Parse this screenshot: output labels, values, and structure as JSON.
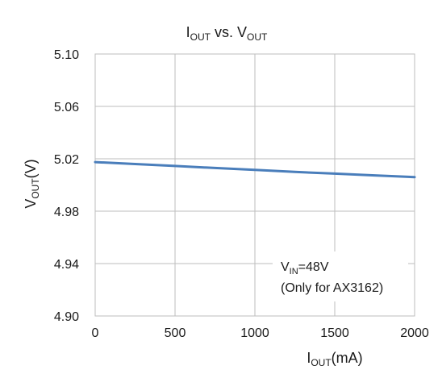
{
  "chart_data": {
    "type": "line",
    "title": {
      "main": "I",
      "main_sub": "OUT",
      "mid": " vs. V",
      "mid_sub": "OUT"
    },
    "xlabel": {
      "main": "I",
      "sub": "OUT",
      "unit": "(mA)"
    },
    "ylabel": {
      "main": "V",
      "sub": "OUT",
      "unit": "(V)"
    },
    "xlim": [
      0,
      2000
    ],
    "ylim": [
      4.9,
      5.1
    ],
    "x_ticks": [
      "0",
      "500",
      "1000",
      "1500",
      "2000"
    ],
    "y_ticks": [
      "5.10",
      "5.06",
      "5.02",
      "4.98",
      "4.94",
      "4.90"
    ],
    "grid": true,
    "series": [
      {
        "x": [
          0,
          250,
          500,
          750,
          1000,
          1250,
          1500,
          1750,
          2000
        ],
        "y": [
          5.0175,
          5.016,
          5.0145,
          5.013,
          5.0115,
          5.01,
          5.0087,
          5.0073,
          5.006
        ],
        "color": "#4a7ebb"
      }
    ],
    "annotations": {
      "line1": {
        "main": "V",
        "sub": "IN",
        "rest": "=48V"
      },
      "line2": "(Only for AX3162)",
      "position": "bottom-right"
    }
  }
}
